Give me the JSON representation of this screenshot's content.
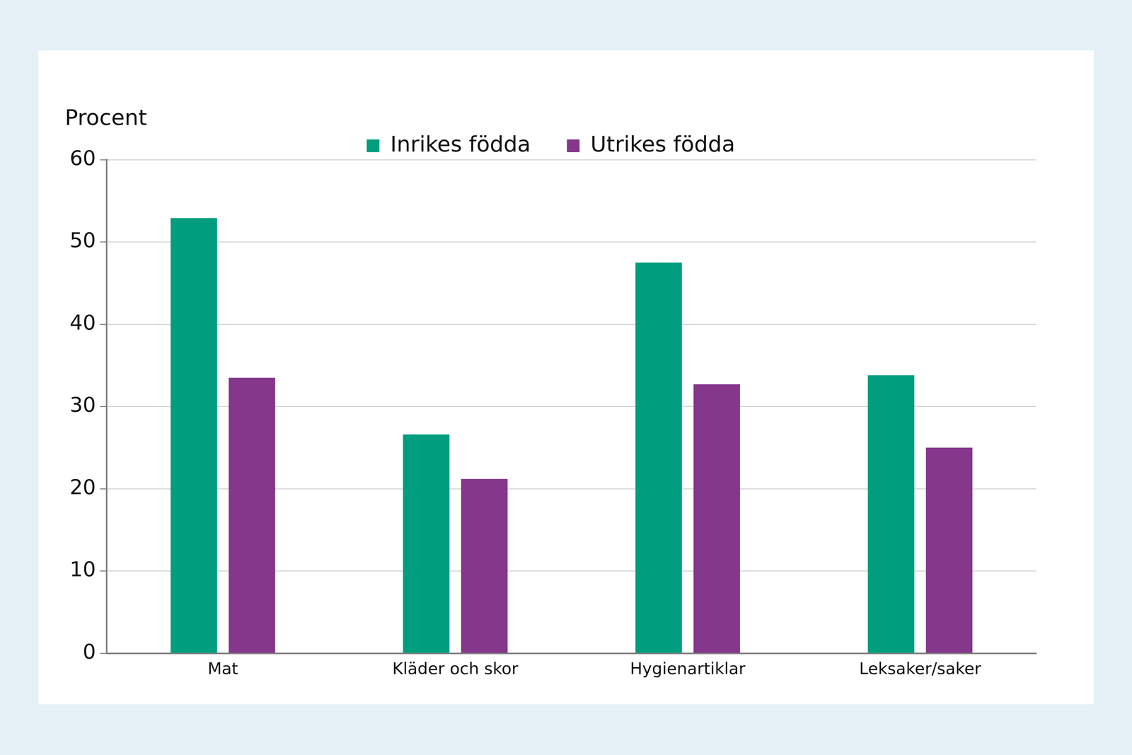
{
  "chart_data": {
    "type": "bar",
    "ylabel": "Procent",
    "categories": [
      "Mat",
      "Kläder och skor",
      "Hygienartiklar",
      "Leksaker/saker"
    ],
    "series": [
      {
        "name": "Inrikes födda",
        "color": "#009e7e",
        "values": [
          52.9,
          26.6,
          47.5,
          33.8
        ]
      },
      {
        "name": "Utrikes födda",
        "color": "#84378b",
        "values": [
          33.5,
          21.2,
          32.7,
          25.0
        ]
      }
    ],
    "ylim": [
      0,
      60
    ],
    "yticks": [
      0,
      10,
      20,
      30,
      40,
      50,
      60
    ],
    "grid": true,
    "legend": "top"
  }
}
